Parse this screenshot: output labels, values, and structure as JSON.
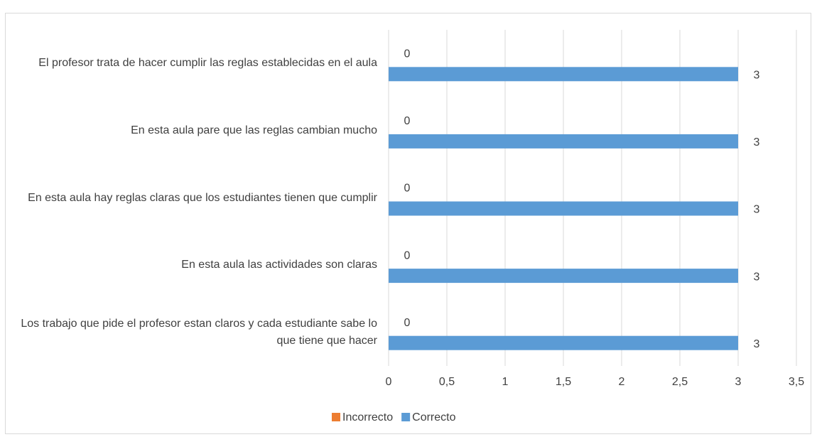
{
  "chart_data": {
    "type": "hbar",
    "categories": [
      "El profesor trata de hacer cumplir las reglas establecidas en el aula",
      "En esta aula pare que las reglas cambian mucho",
      "En esta aula hay reglas claras que los estudiantes tienen que cumplir",
      "En esta aula las actividades son claras",
      "Los trabajo que pide el profesor estan claros y cada estudiante sabe lo que tiene que hacer"
    ],
    "series": [
      {
        "name": "Incorrecto",
        "color": "#ed7d31",
        "values": [
          0,
          0,
          0,
          0,
          0
        ]
      },
      {
        "name": "Correcto",
        "color": "#5b9bd5",
        "values": [
          3,
          3,
          3,
          3,
          3
        ]
      }
    ],
    "xlim": [
      0,
      3.5
    ],
    "xticks": [
      0,
      {
        "value": 0.5,
        "label": "0,5"
      },
      1,
      {
        "value": 1.5,
        "label": "1,5"
      },
      2,
      {
        "value": 2.5,
        "label": "2,5"
      },
      3,
      {
        "value": 3.5,
        "label": "3,5"
      }
    ],
    "grid": true,
    "legend": "bottom"
  }
}
